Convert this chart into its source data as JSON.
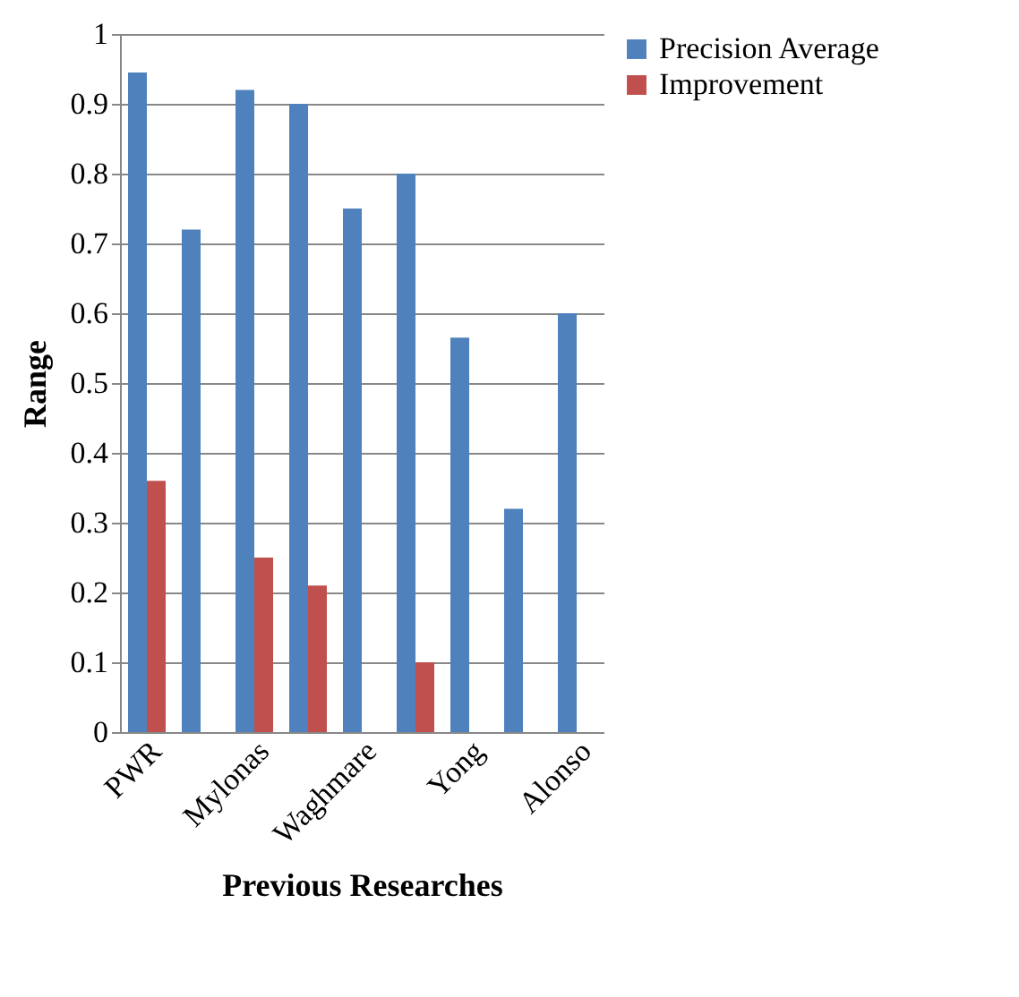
{
  "chart_data": {
    "type": "bar",
    "xlabel": "Previous Researches",
    "ylabel": "Range",
    "categories": [
      "PWR",
      null,
      "Mylonas",
      null,
      "Waghmare",
      null,
      "Yong",
      null,
      "Alonso"
    ],
    "series": [
      {
        "name": "Precision Average",
        "color": "#4f81bd",
        "values": [
          0.945,
          0.72,
          0.92,
          0.9,
          0.75,
          0.8,
          0.565,
          0.32,
          0.6
        ]
      },
      {
        "name": "Improvement",
        "color": "#c0504d",
        "values": [
          0.36,
          null,
          0.25,
          0.21,
          null,
          0.1,
          null,
          null,
          null
        ]
      }
    ],
    "ylim": [
      0,
      1
    ],
    "yticks": [
      0,
      0.1,
      0.2,
      0.3,
      0.4,
      0.5,
      0.6,
      0.7,
      0.8,
      0.9,
      1
    ],
    "grid": "y",
    "legend": "right"
  }
}
